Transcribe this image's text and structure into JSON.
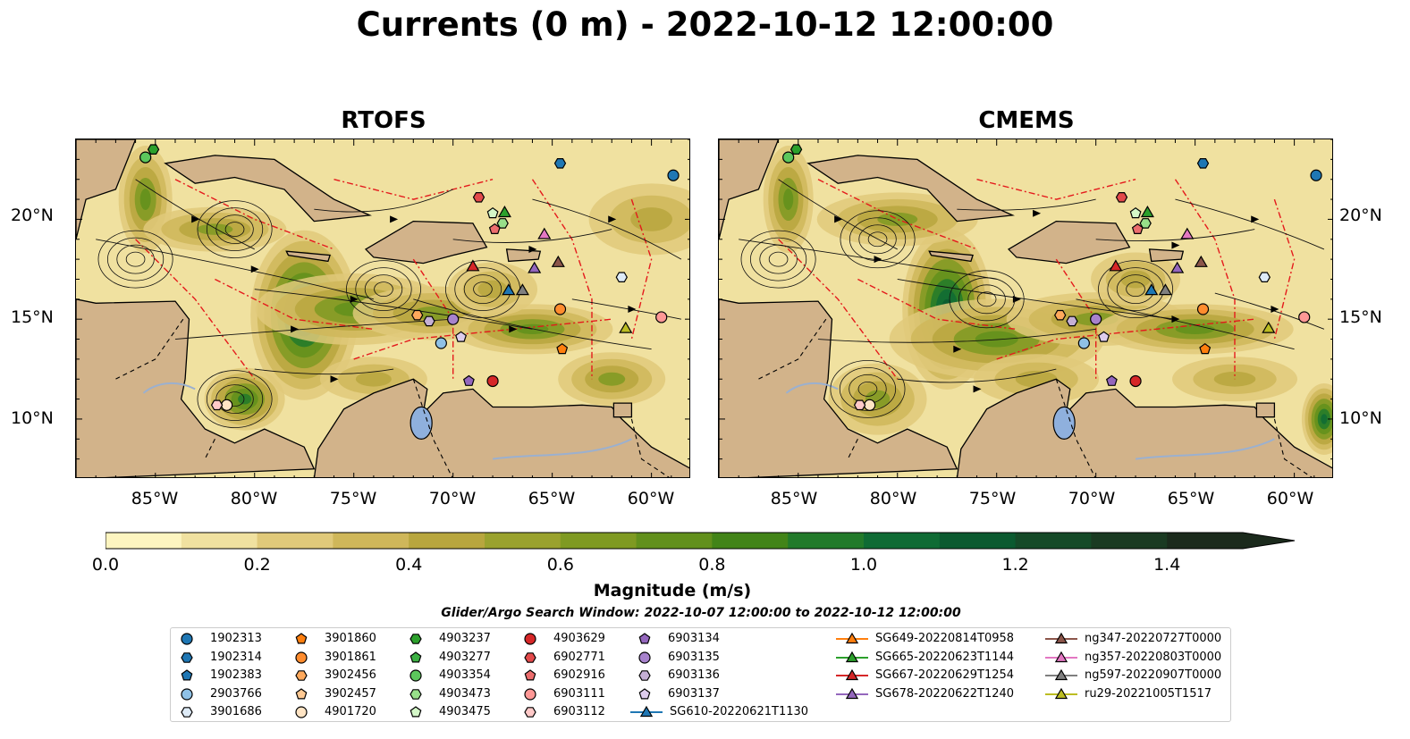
{
  "suptitle": "Currents (0 m) - 2022-10-12 12:00:00",
  "panels": [
    {
      "title": "RTOFS"
    },
    {
      "title": "CMEMS"
    }
  ],
  "lat_labels": [
    "20°N",
    "15°N",
    "10°N"
  ],
  "lon_labels": [
    "85°W",
    "80°W",
    "75°W",
    "70°W",
    "65°W",
    "60°W"
  ],
  "extent": {
    "lon_min": -89,
    "lon_max": -58,
    "lat_min": 7,
    "lat_max": 24
  },
  "colorbar": {
    "label": "Magnitude (m/s)",
    "ticks": [
      "0.0",
      "0.2",
      "0.4",
      "0.6",
      "0.8",
      "1.0",
      "1.2",
      "1.4"
    ],
    "range": [
      0,
      1.5
    ],
    "colors": [
      "#fdf5c0",
      "#f0e1a0",
      "#e0c97a",
      "#cfb75a",
      "#b8a63e",
      "#9aa22e",
      "#7f9a22",
      "#62901c",
      "#428418",
      "#227a2a",
      "#0f6b34",
      "#0b5a30",
      "#154a28",
      "#1a3a22",
      "#1b2a1c"
    ]
  },
  "search_window": "Glider/Argo Search Window: 2022-10-07 12:00:00 to 2022-10-12 12:00:00",
  "legend": {
    "argo": [
      {
        "id": "1902313",
        "color": "#1f77b4",
        "marker": "circle"
      },
      {
        "id": "1902314",
        "color": "#1f77b4",
        "marker": "hexagon"
      },
      {
        "id": "1902383",
        "color": "#1f77b4",
        "marker": "pentagon"
      },
      {
        "id": "2903766",
        "color": "#8fc1e6",
        "marker": "circle"
      },
      {
        "id": "3901686",
        "color": "#deebf7",
        "marker": "hexagon"
      },
      {
        "id": "3901860",
        "color": "#ff7f0e",
        "marker": "pentagon"
      },
      {
        "id": "3901861",
        "color": "#ff8c2e",
        "marker": "circle"
      },
      {
        "id": "3902456",
        "color": "#ffa95c",
        "marker": "hexagon"
      },
      {
        "id": "3902457",
        "color": "#ffc993",
        "marker": "pentagon"
      },
      {
        "id": "4901720",
        "color": "#ffe4c4",
        "marker": "circle"
      },
      {
        "id": "4903237",
        "color": "#2ca02c",
        "marker": "hexagon"
      },
      {
        "id": "4903277",
        "color": "#3cb043",
        "marker": "pentagon"
      },
      {
        "id": "4903354",
        "color": "#5cc75c",
        "marker": "circle"
      },
      {
        "id": "4903473",
        "color": "#98df8a",
        "marker": "hexagon"
      },
      {
        "id": "4903475",
        "color": "#d4f7c8",
        "marker": "pentagon"
      },
      {
        "id": "4903629",
        "color": "#d62728",
        "marker": "circle"
      },
      {
        "id": "6902771",
        "color": "#e34a4b",
        "marker": "hexagon"
      },
      {
        "id": "6902916",
        "color": "#ec6d6d",
        "marker": "pentagon"
      },
      {
        "id": "6903111",
        "color": "#ff9896",
        "marker": "circle"
      },
      {
        "id": "6903112",
        "color": "#ffc9c8",
        "marker": "hexagon"
      },
      {
        "id": "6903134",
        "color": "#9467bd",
        "marker": "pentagon"
      },
      {
        "id": "6903135",
        "color": "#a782cc",
        "marker": "circle"
      },
      {
        "id": "6903136",
        "color": "#c5b0d5",
        "marker": "hexagon"
      },
      {
        "id": "6903137",
        "color": "#ddccec",
        "marker": "pentagon"
      }
    ],
    "gliders": [
      {
        "id": "SG610-20220621T1130",
        "color": "#1f77b4"
      },
      {
        "id": "SG649-20220814T0958",
        "color": "#ff7f0e"
      },
      {
        "id": "SG665-20220623T1144",
        "color": "#2ca02c"
      },
      {
        "id": "SG667-20220629T1254",
        "color": "#d62728"
      },
      {
        "id": "SG678-20220622T1240",
        "color": "#9467bd"
      },
      {
        "id": "ng347-20220727T0000",
        "color": "#8c564b"
      },
      {
        "id": "ng357-20220803T0000",
        "color": "#e377c2"
      },
      {
        "id": "ng597-20220907T0000",
        "color": "#7f7f7f"
      },
      {
        "id": "ru29-20221005T1517",
        "color": "#bcbd22"
      }
    ]
  },
  "stations": {
    "argo": [
      {
        "id": "1902313",
        "lon": -58.9,
        "lat": 22.2
      },
      {
        "id": "1902314",
        "lon": -64.6,
        "lat": 22.8
      },
      {
        "id": "2903766",
        "lon": -70.6,
        "lat": 13.8
      },
      {
        "id": "3901860",
        "lon": -64.5,
        "lat": 13.5
      },
      {
        "id": "3901861",
        "lon": -64.6,
        "lat": 15.5
      },
      {
        "id": "3901686",
        "lon": -61.5,
        "lat": 17.1
      },
      {
        "id": "4901720",
        "lon": -81.4,
        "lat": 10.7
      },
      {
        "id": "4903237",
        "lon": -85.1,
        "lat": 23.5
      },
      {
        "id": "4903354",
        "lon": -85.5,
        "lat": 23.1
      },
      {
        "id": "4903473",
        "lon": -67.5,
        "lat": 19.8
      },
      {
        "id": "4903475",
        "lon": -68.0,
        "lat": 20.3
      },
      {
        "id": "4903629",
        "lon": -68.0,
        "lat": 11.9
      },
      {
        "id": "6902771",
        "lon": -68.7,
        "lat": 21.1
      },
      {
        "id": "6903111",
        "lon": -59.5,
        "lat": 15.1
      },
      {
        "id": "6903112",
        "lon": -81.9,
        "lat": 10.7
      },
      {
        "id": "6902916",
        "lon": -67.9,
        "lat": 19.5
      },
      {
        "id": "6903134",
        "lon": -69.2,
        "lat": 11.9
      },
      {
        "id": "6903135",
        "lon": -70.0,
        "lat": 15.0
      },
      {
        "id": "6903136",
        "lon": -71.2,
        "lat": 14.9
      },
      {
        "id": "6903137",
        "lon": -69.6,
        "lat": 14.1
      },
      {
        "id": "3902456",
        "lon": -71.8,
        "lat": 15.2
      }
    ],
    "gliders": [
      {
        "id": "SG610-20220621T1130",
        "lon": -67.2,
        "lat": 16.4
      },
      {
        "id": "SG665-20220623T1144",
        "lon": -67.4,
        "lat": 20.3
      },
      {
        "id": "SG667-20220629T1254",
        "lon": -69.0,
        "lat": 17.6
      },
      {
        "id": "SG678-20220622T1240",
        "lon": -65.9,
        "lat": 17.5
      },
      {
        "id": "ng347-20220727T0000",
        "lon": -64.7,
        "lat": 17.8
      },
      {
        "id": "ng357-20220803T0000",
        "lon": -65.4,
        "lat": 19.2
      },
      {
        "id": "ng597-20220907T0000",
        "lon": -66.5,
        "lat": 16.4
      },
      {
        "id": "ru29-20221005T1517",
        "lon": -61.3,
        "lat": 14.5
      }
    ]
  }
}
